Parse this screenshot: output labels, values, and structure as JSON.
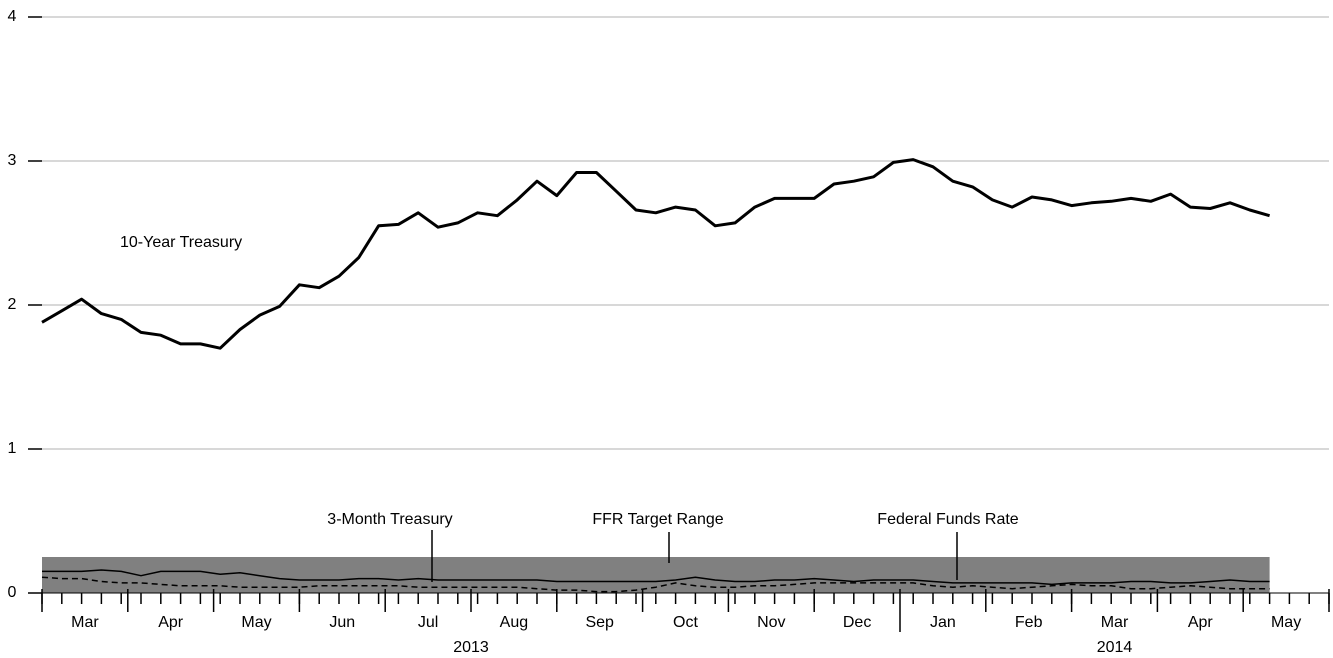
{
  "chart_data": {
    "type": "line",
    "categories": [
      null,
      null,
      null,
      null,
      null,
      null,
      null,
      null,
      null,
      null,
      null,
      null,
      null,
      null,
      null,
      null,
      null,
      null,
      null,
      null,
      null,
      null,
      null,
      null,
      null,
      null,
      null,
      null,
      null,
      null,
      null,
      null,
      null,
      null,
      null,
      null,
      null,
      null,
      null,
      null,
      null,
      null,
      null,
      null,
      null,
      null,
      null,
      null,
      null,
      null,
      null,
      null,
      null,
      null,
      null,
      null,
      null,
      null,
      null,
      null,
      null,
      null,
      null
    ],
    "series": [
      {
        "name": "10-Year Treasury",
        "color": "#000000",
        "dash": false,
        "width": 3,
        "values": [
          1.88,
          1.96,
          2.04,
          1.94,
          1.9,
          1.81,
          1.79,
          1.73,
          1.73,
          1.7,
          1.83,
          1.93,
          1.99,
          2.14,
          2.12,
          2.2,
          2.33,
          2.55,
          2.56,
          2.64,
          2.54,
          2.57,
          2.64,
          2.62,
          2.73,
          2.86,
          2.76,
          2.92,
          2.92,
          2.79,
          2.66,
          2.64,
          2.68,
          2.66,
          2.55,
          2.57,
          2.68,
          2.74,
          2.74,
          2.74,
          2.84,
          2.86,
          2.89,
          2.99,
          3.01,
          2.96,
          2.86,
          2.82,
          2.73,
          2.68,
          2.75,
          2.73,
          2.69,
          2.71,
          2.72,
          2.74,
          2.72,
          2.77,
          2.68,
          2.67,
          2.71,
          2.66,
          2.62
        ]
      },
      {
        "name": "3-Month Treasury",
        "color": "#000000",
        "dash": true,
        "width": 1.5,
        "values": [
          0.11,
          0.1,
          0.1,
          0.08,
          0.07,
          0.07,
          0.06,
          0.05,
          0.05,
          0.05,
          0.04,
          0.04,
          0.04,
          0.04,
          0.05,
          0.05,
          0.05,
          0.05,
          0.05,
          0.04,
          0.04,
          0.04,
          0.04,
          0.04,
          0.04,
          0.03,
          0.02,
          0.02,
          0.01,
          0.01,
          0.02,
          0.04,
          0.07,
          0.05,
          0.04,
          0.04,
          0.05,
          0.05,
          0.06,
          0.07,
          0.07,
          0.07,
          0.07,
          0.07,
          0.07,
          0.05,
          0.04,
          0.05,
          0.04,
          0.03,
          0.04,
          0.05,
          0.06,
          0.05,
          0.05,
          0.03,
          0.03,
          0.04,
          0.05,
          0.04,
          0.03,
          0.03,
          0.03
        ]
      },
      {
        "name": "Federal Funds Rate",
        "color": "#000000",
        "dash": false,
        "width": 1.5,
        "values": [
          0.15,
          0.15,
          0.15,
          0.16,
          0.15,
          0.12,
          0.15,
          0.15,
          0.15,
          0.13,
          0.14,
          0.12,
          0.1,
          0.09,
          0.09,
          0.09,
          0.1,
          0.1,
          0.09,
          0.1,
          0.09,
          0.09,
          0.09,
          0.09,
          0.09,
          0.09,
          0.08,
          0.08,
          0.08,
          0.08,
          0.08,
          0.08,
          0.09,
          0.11,
          0.09,
          0.08,
          0.08,
          0.09,
          0.09,
          0.1,
          0.09,
          0.08,
          0.09,
          0.09,
          0.09,
          0.08,
          0.07,
          0.07,
          0.07,
          0.07,
          0.07,
          0.06,
          0.07,
          0.07,
          0.07,
          0.08,
          0.08,
          0.07,
          0.07,
          0.08,
          0.09,
          0.08,
          0.08
        ]
      }
    ],
    "band": {
      "name": "FFR Target Range",
      "range": [
        0,
        0.25
      ],
      "color": "#808080"
    },
    "months": [
      "Mar",
      "Apr",
      "May",
      "Jun",
      "Jul",
      "Aug",
      "Sep",
      "Oct",
      "Nov",
      "Dec",
      "Jan",
      "Feb",
      "Mar",
      "Apr",
      "May"
    ],
    "years": [
      "2013",
      "2014"
    ],
    "ylim": [
      0,
      4
    ],
    "yticks": [
      0,
      1,
      2,
      3,
      4
    ],
    "grid": true
  }
}
